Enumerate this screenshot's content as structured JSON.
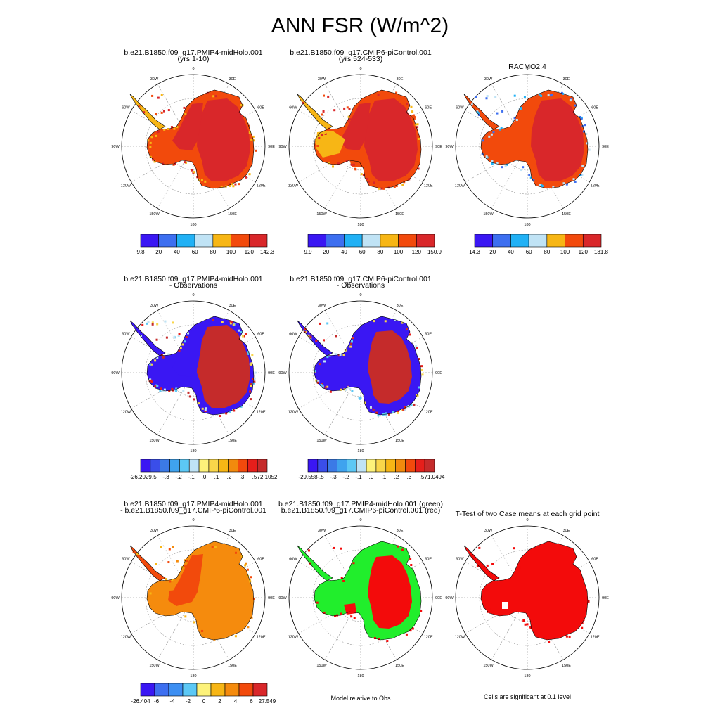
{
  "title": "ANN FSR (W/m^2)",
  "longitude_labels": [
    "0",
    "30E",
    "60E",
    "90E",
    "120E",
    "150E",
    "180",
    "150W",
    "120W",
    "90W",
    "60W",
    "30W"
  ],
  "colors": {
    "scale": [
      "#3a17f3",
      "#3d6ff0",
      "#21b1f5",
      "#c0e3f5",
      "#f7b615",
      "#f24a0c",
      "#d9272a"
    ],
    "diff": [
      "#3a17f3",
      "#3a4ee9",
      "#3b7ae6",
      "#3fa3ee",
      "#5cc8f5",
      "#bfe3f5",
      "#fdf27a",
      "#f9d64a",
      "#f7b615",
      "#f28a0d",
      "#f24a0c",
      "#e61f1b",
      "#c52b2b"
    ],
    "casediff": [
      "#3a17f3",
      "#3d6ff0",
      "#3d8ff2",
      "#5cc8f5",
      "#fdf27a",
      "#f7b615",
      "#f58b0d",
      "#f24a0c",
      "#d9272a"
    ],
    "green": "#21ee2c",
    "red": "#f30b0b",
    "ocean": "#ffffff"
  },
  "panels": [
    {
      "title_line1": "b.e21.B1850.f09_g17.PMIP4-midHolo.001",
      "title_line2": "(yrs 1-10)",
      "colorbar_labels": [
        "9.8",
        "20",
        "40",
        "60",
        "80",
        "100",
        "120",
        "142.3"
      ]
    },
    {
      "title_line1": "b.e21.B1850.f09_g17.CMIP6-piControl.001",
      "title_line2": "(yrs 524-533)",
      "colorbar_labels": [
        "9.9",
        "20",
        "40",
        "60",
        "80",
        "100",
        "120",
        "150.9"
      ]
    },
    {
      "title_line1": "RACMO2.4",
      "title_line2": "",
      "colorbar_labels": [
        "14.3",
        "20",
        "40",
        "60",
        "80",
        "100",
        "120",
        "131.8"
      ]
    },
    {
      "title_line1": "b.e21.B1850.f09_g17.PMIP4-midHolo.001",
      "title_line2": "- Observations",
      "colorbar_labels": [
        "-26.2029",
        "-.5",
        "-.3",
        "-.2",
        "-.1",
        ".0",
        ".1",
        ".2",
        ".3",
        ".5",
        "72.1052"
      ]
    },
    {
      "title_line1": "b.e21.B1850.f09_g17.CMIP6-piControl.001",
      "title_line2": "- Observations",
      "colorbar_labels": [
        "-29.558",
        "-.5",
        "-.3",
        "-.2",
        "-.1",
        ".0",
        ".1",
        ".2",
        ".3",
        ".5",
        "71.0494"
      ]
    },
    {
      "title_line1": "b.e21.B1850.f09_g17.PMIP4-midHolo.001",
      "title_line2": "- b.e21.B1850.f09_g17.CMIP6-piControl.001",
      "colorbar_labels": [
        "-26.404",
        "-6",
        "-4",
        "-2",
        "0",
        "2",
        "4",
        "6",
        "27.549"
      ]
    },
    {
      "title_line1": "b.e21.B1850.f09_g17.PMIP4-midHolo.001 (green)",
      "title_line2": "b.e21.B1850.f09_g17.CMIP6-piControl.001 (red)",
      "colorbar_labels": []
    },
    {
      "title_line1": "T-Test of two Case means at each grid point",
      "title_line2": "",
      "colorbar_labels": []
    }
  ],
  "notes": {
    "model_relative": "Model relative to Obs",
    "significance": "Cells are significant at 0.1 level"
  },
  "chart_data": {
    "type": "heatmap",
    "title": "ANN FSR (W/m^2)",
    "projection": "south polar stereographic",
    "maps": [
      {
        "name": "b.e21.B1850.f09_g17.PMIP4-midHolo.001 (yrs 1-10)",
        "range": [
          9.8,
          142.3
        ],
        "levels": [
          20,
          40,
          60,
          80,
          100,
          120
        ]
      },
      {
        "name": "b.e21.B1850.f09_g17.CMIP6-piControl.001 (yrs 524-533)",
        "range": [
          9.9,
          150.9
        ],
        "levels": [
          20,
          40,
          60,
          80,
          100,
          120
        ]
      },
      {
        "name": "RACMO2.4",
        "range": [
          14.3,
          131.8
        ],
        "levels": [
          20,
          40,
          60,
          80,
          100,
          120
        ]
      },
      {
        "name": "b.e21.B1850.f09_g17.PMIP4-midHolo.001 - Observations",
        "range": [
          -26.2029,
          72.1052
        ],
        "levels": [
          -0.5,
          -0.3,
          -0.2,
          -0.1,
          0.0,
          0.1,
          0.2,
          0.3,
          0.5
        ]
      },
      {
        "name": "b.e21.B1850.f09_g17.CMIP6-piControl.001 - Observations",
        "range": [
          -29.558,
          71.0494
        ],
        "levels": [
          -0.5,
          -0.3,
          -0.2,
          -0.1,
          0.0,
          0.1,
          0.2,
          0.3,
          0.5
        ]
      },
      {
        "name": "b.e21.B1850.f09_g17.PMIP4-midHolo.001 - b.e21.B1850.f09_g17.CMIP6-piControl.001",
        "range": [
          -26.404,
          27.549
        ],
        "levels": [
          -6,
          -4,
          -2,
          0,
          2,
          4,
          6
        ]
      },
      {
        "name": "Model relative to Obs",
        "categories": [
          "b.e21.B1850.f09_g17.PMIP4-midHolo.001 (green)",
          "b.e21.B1850.f09_g17.CMIP6-piControl.001 (red)"
        ]
      },
      {
        "name": "T-Test of two Case means at each grid point",
        "significance": 0.1
      }
    ]
  }
}
